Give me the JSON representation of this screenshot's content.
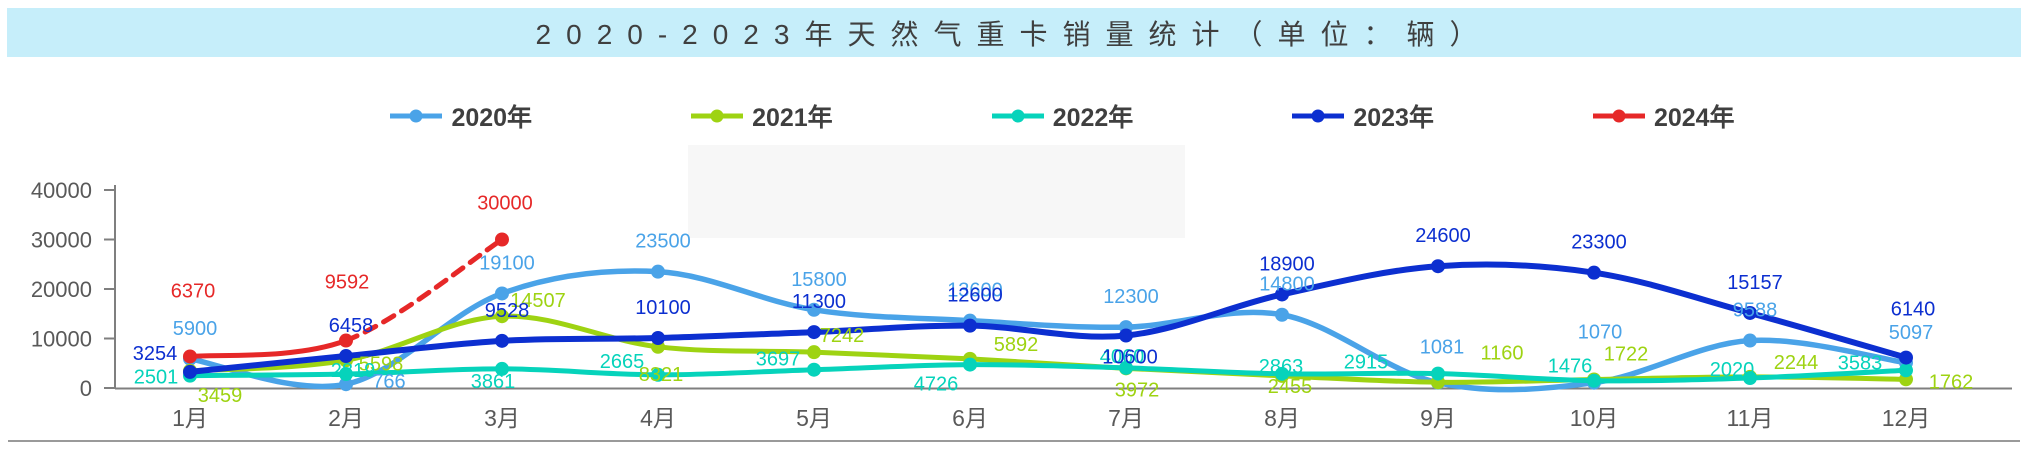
{
  "title": "2020-2023年天然气重卡销量统计（单位：辆）",
  "banner_color": "#c6eefa",
  "axis": {
    "line_color": "#7f7f7f",
    "tick_label_color": "#595959"
  },
  "chart_data": {
    "type": "line",
    "title": "2020-2023年天然气重卡销量统计（单位：辆）",
    "categories": [
      "1月",
      "2月",
      "3月",
      "4月",
      "5月",
      "6月",
      "7月",
      "8月",
      "9月",
      "10月",
      "11月",
      "12月"
    ],
    "yticks": [
      0,
      10000,
      20000,
      30000,
      40000
    ],
    "ylim": [
      0,
      40000
    ],
    "xlabel": "",
    "ylabel": "",
    "grid": false,
    "legend_position": "top",
    "series": [
      {
        "name": "2020年",
        "color": "#4aa3e8",
        "style": "solid",
        "values": [
          5900,
          766,
          19100,
          23500,
          15800,
          13600,
          12300,
          14800,
          1081,
          1070,
          9588,
          5097
        ]
      },
      {
        "name": "2021年",
        "color": "#9ed312",
        "style": "solid",
        "values": [
          3459,
          5598,
          14507,
          8321,
          7242,
          5892,
          3972,
          2455,
          1160,
          1722,
          2244,
          1762
        ]
      },
      {
        "name": "2022年",
        "color": "#06d3bb",
        "style": "solid",
        "values": [
          2501,
          2819,
          3861,
          2665,
          3697,
          4726,
          4060,
          2863,
          2915,
          1476,
          2020,
          3583
        ]
      },
      {
        "name": "2023年",
        "color": "#0c2fd0",
        "style": "solid",
        "values": [
          3254,
          6458,
          9528,
          10100,
          11300,
          12600,
          10600,
          18900,
          24600,
          23300,
          15157,
          6140
        ]
      },
      {
        "name": "2024年",
        "color": "#e62828",
        "style": "dashed-after-feb",
        "values": [
          6370,
          9592,
          30000
        ]
      }
    ]
  }
}
